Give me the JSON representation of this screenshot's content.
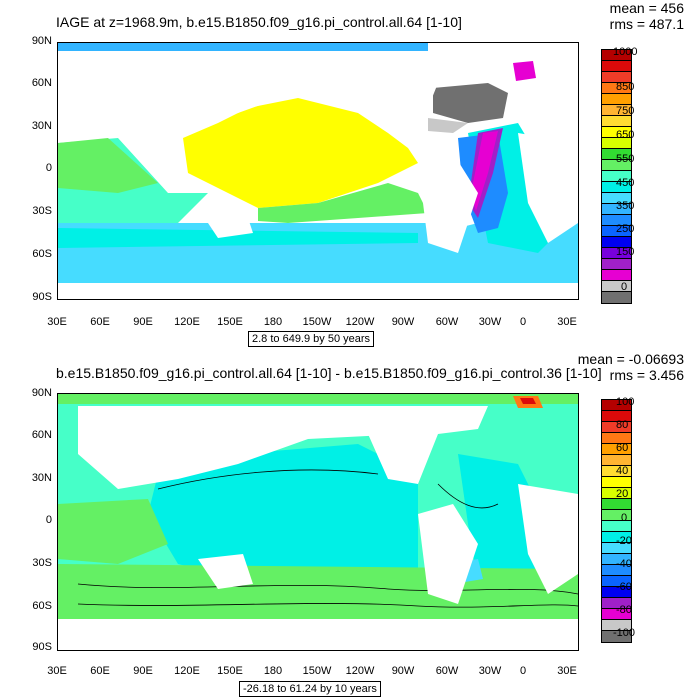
{
  "colors": {
    "top_scale": [
      "#707070",
      "#c8c8c8",
      "#e600d2",
      "#a020c8",
      "#7800dc",
      "#0000f0",
      "#0a64ff",
      "#1e8cff",
      "#32b4ff",
      "#46dcff",
      "#00f0e6",
      "#46ffc8",
      "#64f064",
      "#32dc32",
      "#d7ff00",
      "#ffff00",
      "#ffdc32",
      "#ffb432",
      "#ffa000",
      "#ff7814",
      "#f03c28",
      "#dc0a0a",
      "#b40000"
    ],
    "bottom_scale": [
      "#707070",
      "#c8c8c8",
      "#e600d2",
      "#a020c8",
      "#0000f0",
      "#0a64ff",
      "#1e8cff",
      "#32b4ff",
      "#46dcff",
      "#00f0e6",
      "#46ffc8",
      "#64f064",
      "#32dc32",
      "#d7ff00",
      "#ffff00",
      "#ffdc32",
      "#ffb432",
      "#ffa000",
      "#ff7814",
      "#f03c28",
      "#dc0a0a",
      "#b40000"
    ]
  },
  "top_panel": {
    "title": "IAGE at z=1968.9m, b.e15.B1850.f09_g16.pi_control.all.64 [1-10]",
    "mean": "mean = 456",
    "rms": "rms = 487.1",
    "range_label": "2.8 to 649.9 by 50 years",
    "colorbar_labels": [
      "1000",
      "850",
      "750",
      "650",
      "550",
      "450",
      "350",
      "250",
      "150",
      "0"
    ]
  },
  "bottom_panel": {
    "title": "b.e15.B1850.f09_g16.pi_control.all.64 [1-10] - b.e15.B1850.f09_g16.pi_control.36 [1-10]",
    "mean": "mean = -0.06693",
    "rms": "rms = 3.456",
    "range_label": "-26.18 to 61.24 by 10 years",
    "colorbar_labels": [
      "100",
      "80",
      "60",
      "40",
      "20",
      "0",
      "-20",
      "-40",
      "-60",
      "-80",
      "-100"
    ]
  },
  "axes": {
    "lat_labels": [
      "90N",
      "60N",
      "30N",
      "0",
      "30S",
      "60S",
      "90S"
    ],
    "lon_labels": [
      "30E",
      "60E",
      "90E",
      "120E",
      "150E",
      "180",
      "150W",
      "120W",
      "90W",
      "60W",
      "30W",
      "0",
      "30E"
    ]
  }
}
